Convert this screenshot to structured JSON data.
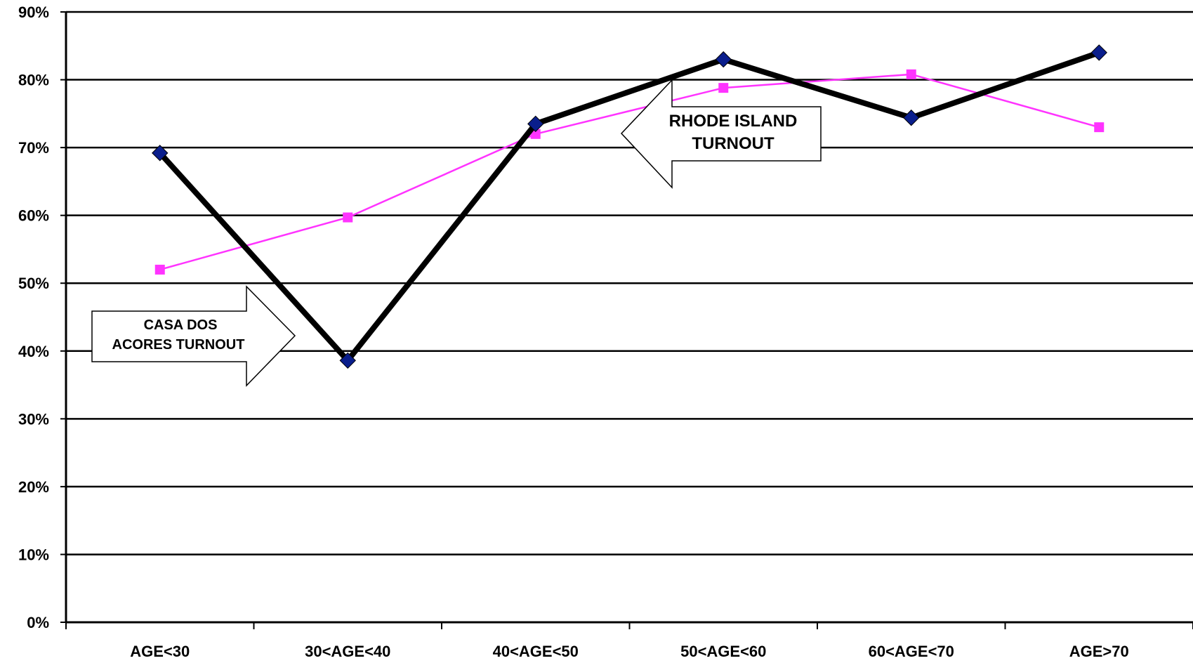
{
  "chart_data": {
    "type": "line",
    "categories": [
      "AGE<30",
      "30<AGE<40",
      "40<AGE<50",
      "50<AGE<60",
      "60<AGE<70",
      "AGE>70"
    ],
    "ylim": [
      0,
      90
    ],
    "yticks": [
      0,
      10,
      20,
      30,
      40,
      50,
      60,
      70,
      80,
      90
    ],
    "ytick_labels": [
      "0%",
      "10%",
      "20%",
      "30%",
      "40%",
      "50%",
      "60%",
      "70%",
      "80%",
      "90%"
    ],
    "grid": true,
    "series": [
      {
        "id": "casa",
        "values": [
          69.2,
          38.6,
          73.5,
          83.0,
          74.4,
          84.0
        ],
        "color": "#000000",
        "marker": "diamond",
        "marker_color": "#0a1e8c"
      },
      {
        "id": "ri",
        "values": [
          52.0,
          59.7,
          72.0,
          78.8,
          80.8,
          73.0
        ],
        "color": "#ff33ff",
        "marker": "square",
        "marker_color": "#ff33ff"
      }
    ],
    "annotations": [
      {
        "id": "casa",
        "lines": [
          "CASA DOS",
          "ACORES TURNOUT"
        ],
        "arrow": "right"
      },
      {
        "id": "ri",
        "lines": [
          "RHODE ISLAND",
          "TURNOUT"
        ],
        "arrow": "left"
      }
    ]
  }
}
